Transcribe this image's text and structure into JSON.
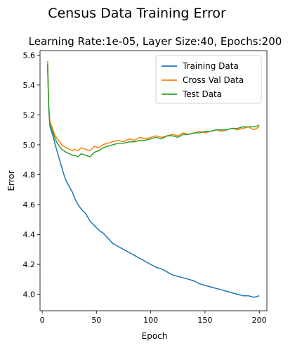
{
  "chart_data": {
    "type": "line",
    "suptitle": "Census Data Training Error",
    "title": "Learning Rate:1e-05, Layer Size:40, Epochs:200",
    "xlabel": "Epoch",
    "ylabel": "Error",
    "xlim": [
      -2,
      207
    ],
    "ylim": [
      3.89,
      5.63
    ],
    "xticks": [
      0,
      50,
      100,
      150,
      200
    ],
    "yticks": [
      4.0,
      4.2,
      4.4,
      4.6,
      4.8,
      5.0,
      5.2,
      5.4,
      5.6
    ],
    "ytick_labels": [
      "4.0",
      "4.2",
      "4.4",
      "4.6",
      "4.8",
      "5.0",
      "5.2",
      "5.4",
      "5.6"
    ],
    "grid": false,
    "legend_position": "top-right",
    "series": [
      {
        "name": "Training Data",
        "color": "#1f77b4",
        "x": [
          5,
          6,
          7,
          8,
          9,
          10,
          12,
          14,
          16,
          18,
          20,
          22,
          25,
          28,
          30,
          33,
          36,
          40,
          44,
          48,
          52,
          56,
          60,
          65,
          70,
          75,
          80,
          85,
          90,
          95,
          100,
          105,
          110,
          115,
          120,
          125,
          130,
          135,
          140,
          145,
          150,
          155,
          160,
          165,
          170,
          175,
          180,
          185,
          190,
          195,
          200
        ],
        "y": [
          5.52,
          5.25,
          5.13,
          5.1,
          5.08,
          5.06,
          5.0,
          4.95,
          4.9,
          4.85,
          4.8,
          4.76,
          4.72,
          4.68,
          4.64,
          4.6,
          4.57,
          4.54,
          4.49,
          4.46,
          4.43,
          4.41,
          4.38,
          4.34,
          4.32,
          4.3,
          4.28,
          4.26,
          4.24,
          4.22,
          4.2,
          4.18,
          4.17,
          4.15,
          4.13,
          4.12,
          4.11,
          4.1,
          4.09,
          4.07,
          4.06,
          4.05,
          4.04,
          4.03,
          4.02,
          4.01,
          4.0,
          3.99,
          3.99,
          3.98,
          3.99
        ]
      },
      {
        "name": "Cross Val Data",
        "color": "#ff7f0e",
        "x": [
          5,
          6,
          7,
          8,
          9,
          10,
          12,
          14,
          16,
          18,
          20,
          22,
          25,
          28,
          30,
          33,
          36,
          40,
          44,
          48,
          52,
          56,
          60,
          65,
          70,
          75,
          80,
          85,
          90,
          95,
          100,
          105,
          110,
          115,
          120,
          125,
          130,
          135,
          140,
          145,
          150,
          155,
          160,
          165,
          170,
          175,
          180,
          185,
          190,
          195,
          200
        ],
        "y": [
          5.56,
          5.27,
          5.16,
          5.14,
          5.12,
          5.1,
          5.06,
          5.04,
          5.02,
          5.0,
          4.99,
          4.98,
          4.97,
          4.96,
          4.97,
          4.96,
          4.98,
          4.97,
          4.96,
          4.99,
          4.98,
          5.0,
          5.01,
          5.02,
          5.03,
          5.02,
          5.04,
          5.03,
          5.05,
          5.04,
          5.05,
          5.06,
          5.05,
          5.06,
          5.07,
          5.06,
          5.08,
          5.07,
          5.08,
          5.09,
          5.08,
          5.09,
          5.1,
          5.09,
          5.1,
          5.11,
          5.1,
          5.11,
          5.12,
          5.1,
          5.12
        ]
      },
      {
        "name": "Test Data",
        "color": "#2ca02c",
        "x": [
          5,
          6,
          7,
          8,
          9,
          10,
          12,
          14,
          16,
          18,
          20,
          22,
          25,
          28,
          30,
          33,
          36,
          40,
          44,
          48,
          52,
          56,
          60,
          65,
          70,
          75,
          80,
          85,
          90,
          95,
          100,
          105,
          110,
          115,
          120,
          125,
          130,
          135,
          140,
          145,
          150,
          155,
          160,
          165,
          170,
          175,
          180,
          185,
          190,
          195,
          200
        ],
        "y": [
          5.54,
          5.25,
          5.14,
          5.12,
          5.1,
          5.08,
          5.04,
          5.01,
          4.99,
          4.97,
          4.96,
          4.95,
          4.94,
          4.93,
          4.93,
          4.92,
          4.94,
          4.93,
          4.92,
          4.95,
          4.96,
          4.98,
          4.99,
          5.0,
          5.01,
          5.01,
          5.02,
          5.02,
          5.03,
          5.03,
          5.04,
          5.05,
          5.04,
          5.06,
          5.06,
          5.05,
          5.07,
          5.07,
          5.08,
          5.08,
          5.09,
          5.09,
          5.1,
          5.1,
          5.1,
          5.11,
          5.11,
          5.12,
          5.12,
          5.12,
          5.13
        ]
      }
    ]
  }
}
